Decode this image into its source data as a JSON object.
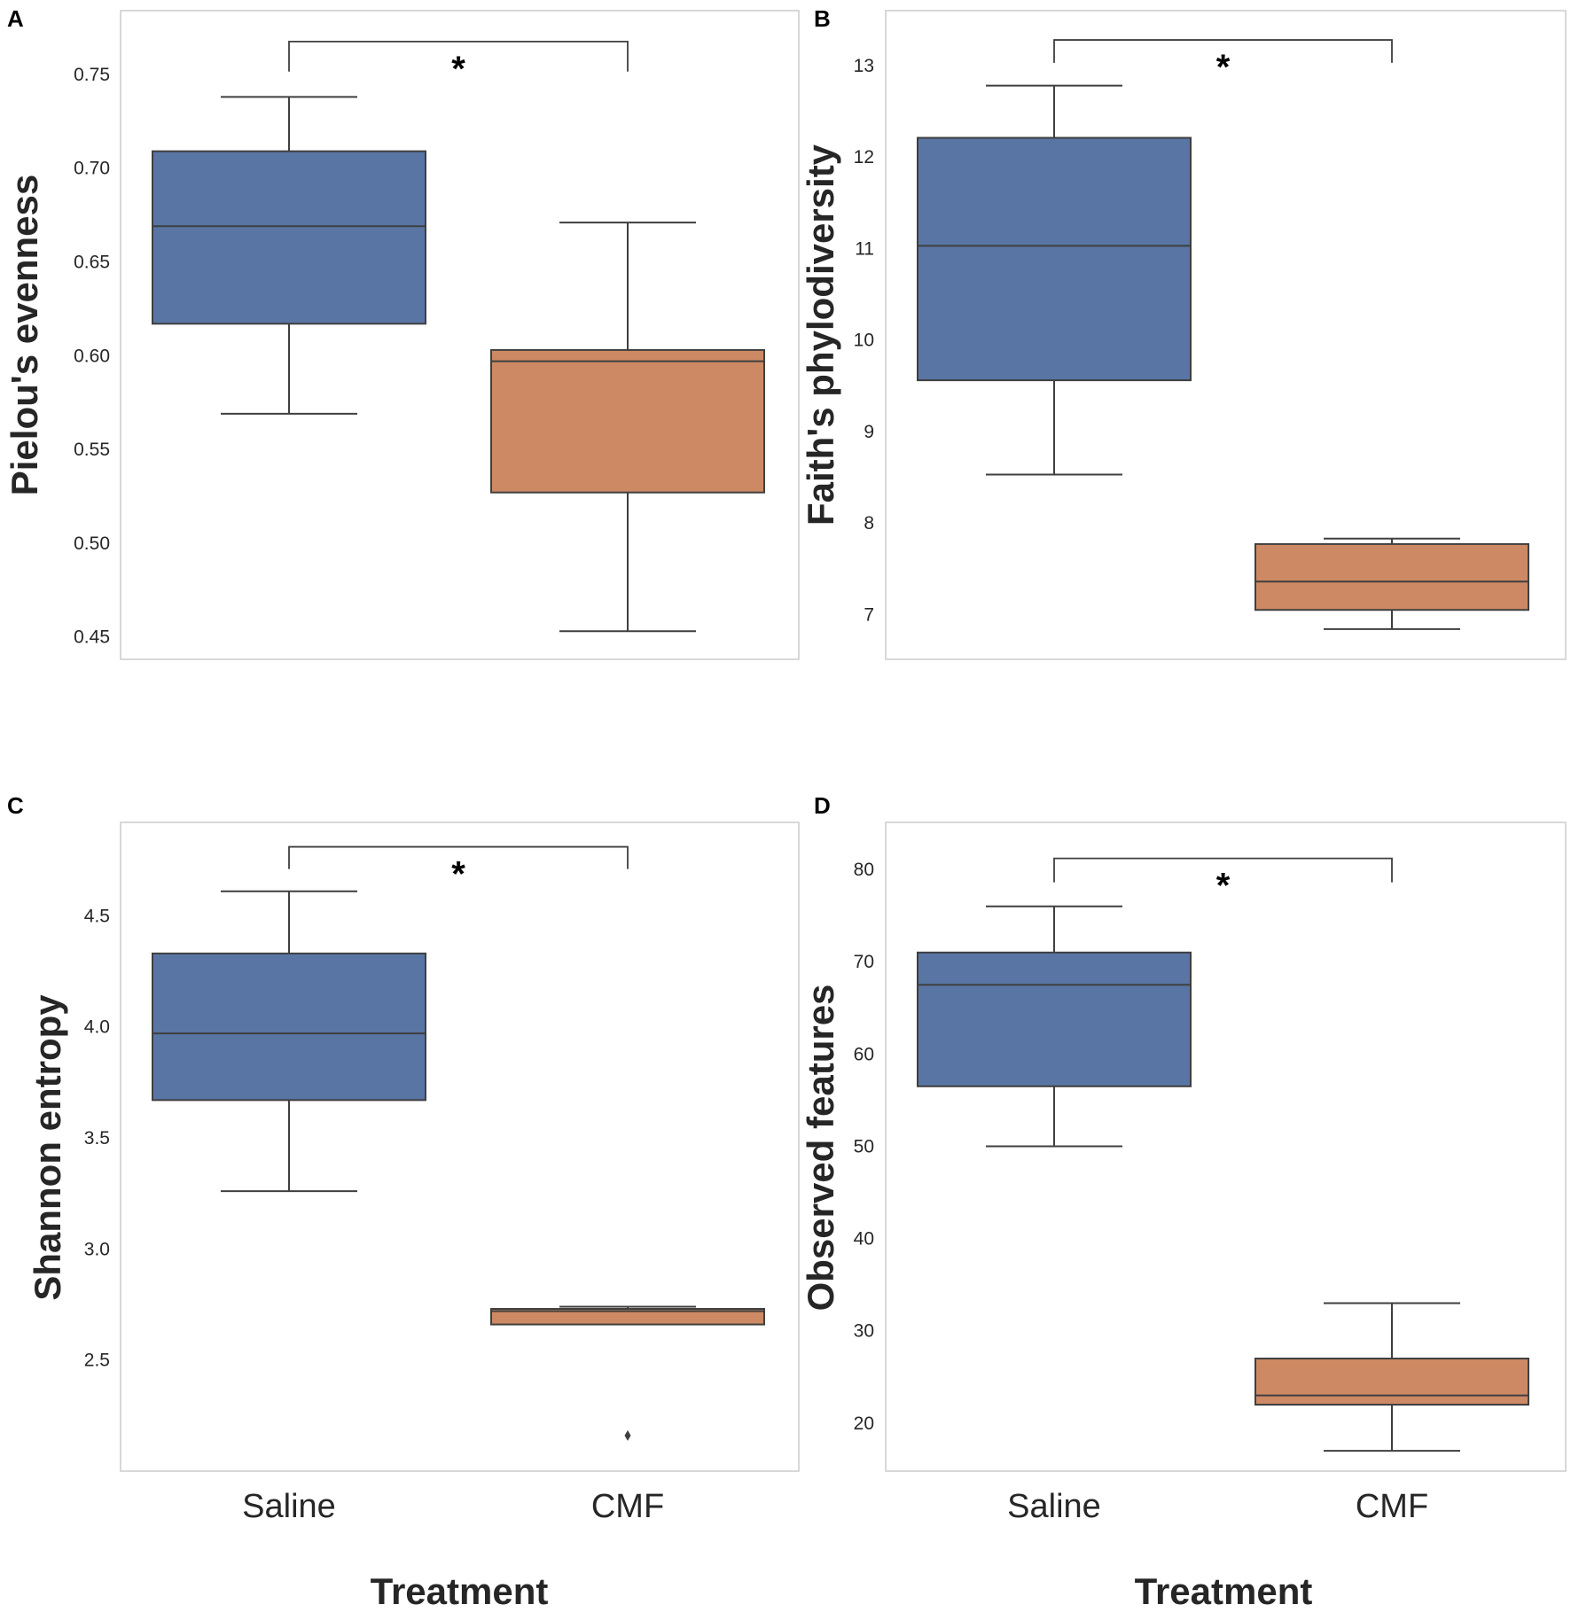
{
  "colors": {
    "saline": "#5875A4",
    "cmf": "#CC8963",
    "line": "#3f3f3f",
    "frame": "#cccccc"
  },
  "chart_data": [
    {
      "type": "box",
      "panel": "A",
      "ylabel": "Pielou's evenness",
      "xlabel": "",
      "categories": [
        "Saline",
        "CMF"
      ],
      "yticks": [
        0.45,
        0.5,
        0.55,
        0.6,
        0.65,
        0.7,
        0.75
      ],
      "tick_labels": [
        "0.45",
        "0.50",
        "0.55",
        "0.60",
        "0.65",
        "0.70",
        "0.75"
      ],
      "ylim": [
        0.438,
        0.784
      ],
      "boxes": [
        {
          "name": "Saline",
          "whisker_low": 0.569,
          "q1": 0.617,
          "median": 0.669,
          "q3": 0.709,
          "whisker_high": 0.738,
          "outliers": []
        },
        {
          "name": "CMF",
          "whisker_low": 0.453,
          "q1": 0.527,
          "median": 0.597,
          "q3": 0.603,
          "whisker_high": 0.671,
          "outliers": []
        }
      ],
      "significance": {
        "label": "*",
        "bracket_y": 0.7675,
        "bracket_drop": 0.016
      }
    },
    {
      "type": "box",
      "panel": "B",
      "ylabel": "Faith's phylodiversity",
      "xlabel": "",
      "categories": [
        "Saline",
        "CMF"
      ],
      "yticks": [
        7,
        8,
        9,
        10,
        11,
        12,
        13
      ],
      "tick_labels": [
        "7",
        "8",
        "9",
        "10",
        "11",
        "12",
        "13"
      ],
      "ylim": [
        6.51,
        13.6
      ],
      "boxes": [
        {
          "name": "Saline",
          "whisker_low": 8.53,
          "q1": 9.56,
          "median": 11.03,
          "q3": 12.21,
          "whisker_high": 12.78,
          "outliers": []
        },
        {
          "name": "CMF",
          "whisker_low": 6.84,
          "q1": 7.05,
          "median": 7.36,
          "q3": 7.77,
          "whisker_high": 7.83,
          "outliers": []
        }
      ],
      "significance": {
        "label": "*",
        "bracket_y": 13.28,
        "bracket_drop": 0.25
      }
    },
    {
      "type": "box",
      "panel": "C",
      "ylabel": "Shannon entropy",
      "xlabel": "Treatment",
      "categories": [
        "Saline",
        "CMF"
      ],
      "yticks": [
        2.5,
        3.0,
        3.5,
        4.0,
        4.5
      ],
      "tick_labels": [
        "2.5",
        "3.0",
        "3.5",
        "4.0",
        "4.5"
      ],
      "ylim": [
        2.0,
        4.92
      ],
      "boxes": [
        {
          "name": "Saline",
          "whisker_low": 3.26,
          "q1": 3.67,
          "median": 3.97,
          "q3": 4.33,
          "whisker_high": 4.61,
          "outliers": []
        },
        {
          "name": "CMF",
          "whisker_low": 2.66,
          "q1": 2.66,
          "median": 2.72,
          "q3": 2.73,
          "whisker_high": 2.74,
          "outliers": [
            2.16
          ]
        }
      ],
      "significance": {
        "label": "*",
        "bracket_y": 4.81,
        "bracket_drop": 0.1
      }
    },
    {
      "type": "box",
      "panel": "D",
      "ylabel": "Observed features",
      "xlabel": "Treatment",
      "categories": [
        "Saline",
        "CMF"
      ],
      "yticks": [
        20,
        30,
        40,
        50,
        60,
        70,
        80
      ],
      "tick_labels": [
        "20",
        "30",
        "40",
        "50",
        "60",
        "70",
        "80"
      ],
      "ylim": [
        14.8,
        85.1
      ],
      "boxes": [
        {
          "name": "Saline",
          "whisker_low": 50,
          "q1": 56.5,
          "median": 67.5,
          "q3": 71,
          "whisker_high": 76,
          "outliers": []
        },
        {
          "name": "CMF",
          "whisker_low": 17,
          "q1": 22,
          "median": 23,
          "q3": 27,
          "whisker_high": 33,
          "outliers": []
        }
      ],
      "significance": {
        "label": "*",
        "bracket_y": 81.2,
        "bracket_drop": 2.6
      }
    }
  ]
}
